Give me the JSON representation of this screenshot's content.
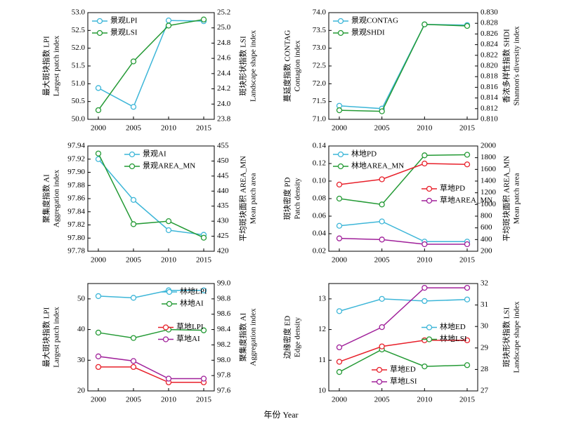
{
  "chart_data": [
    {
      "type": "line",
      "categories": [
        "2000",
        "2005",
        "2010",
        "2015"
      ],
      "ylabel": [
        "最大斑块指数  LPI",
        "Largest patch index"
      ],
      "y2label": [
        "斑块形状指数  LSI",
        "Landscape shape index"
      ],
      "ylim": [
        50.0,
        53.0
      ],
      "yticks": [
        {
          "value": 50,
          "label": "50.0"
        },
        50.5,
        {
          "value": 51,
          "label": "51.0"
        },
        51.5,
        {
          "value": 52,
          "label": "52.0"
        },
        52.5,
        {
          "value": 53,
          "label": "53.0"
        }
      ],
      "y2lim": [
        23.8,
        25.2
      ],
      "y2ticks": [
        23.8,
        {
          "value": 24,
          "label": "24.0"
        },
        24.2,
        24.4,
        24.6,
        24.8,
        {
          "value": 25,
          "label": "25.0"
        },
        25.2
      ],
      "legend": [
        "upper left"
      ],
      "series": [
        {
          "name": "景观LPI",
          "color": "#3db6d8",
          "values": [
            50.88,
            50.35,
            52.78,
            52.76
          ]
        },
        {
          "name": "景观LSI",
          "color": "#249a35",
          "axis": "y2",
          "values": [
            23.92,
            24.56,
            25.03,
            25.11
          ]
        }
      ]
    },
    {
      "type": "line",
      "categories": [
        "2000",
        "2005",
        "2010",
        "2015"
      ],
      "ylabel": [
        "蔓延度指数 CONTAG",
        "Contagion index"
      ],
      "y2label": [
        "香浓多样性指数 SHDI",
        "Shannon's diversity index"
      ],
      "ylim": [
        71.0,
        74.0
      ],
      "yticks": [
        {
          "value": 71,
          "label": "71.0"
        },
        71.5,
        {
          "value": 72,
          "label": "72.0"
        },
        72.5,
        {
          "value": 73,
          "label": "73.0"
        },
        73.5,
        {
          "value": 74,
          "label": "74.0"
        }
      ],
      "y2lim": [
        0.81,
        0.83
      ],
      "y2ticks": [
        {
          "value": 0.81,
          "label": "0.810"
        },
        0.812,
        0.814,
        0.816,
        0.818,
        {
          "value": 0.82,
          "label": "0.820"
        },
        0.822,
        0.824,
        0.826,
        0.828,
        {
          "value": 0.83,
          "label": "0.830"
        }
      ],
      "legend": [
        "upper left"
      ],
      "series": [
        {
          "name": "景观CONTAG",
          "color": "#3db6d8",
          "values": [
            71.38,
            71.3,
            73.67,
            73.65
          ]
        },
        {
          "name": "景观SHDI",
          "color": "#249a35",
          "axis": "y2",
          "values": [
            0.8117,
            0.8115,
            0.8278,
            0.8275
          ]
        }
      ]
    },
    {
      "type": "line",
      "categories": [
        "2000",
        "2005",
        "2010",
        "2015"
      ],
      "ylabel": [
        "聚集度指数  AI",
        "Aggregation index"
      ],
      "y2label": [
        "平均斑块面积 AREA_MN",
        "Mean patch area"
      ],
      "ylim": [
        97.78,
        97.94
      ],
      "yticks": [
        97.78,
        {
          "value": 97.8,
          "label": "97.80"
        },
        97.82,
        97.84,
        97.86,
        97.88,
        {
          "value": 97.9,
          "label": "97.90"
        },
        97.92,
        97.94
      ],
      "y2lim": [
        420,
        455
      ],
      "y2ticks": [
        420,
        425,
        430,
        435,
        440,
        445,
        450,
        455
      ],
      "legend": [
        "upper center"
      ],
      "series": [
        {
          "name": "景观AI",
          "color": "#3db6d8",
          "values": [
            97.92,
            97.858,
            97.812,
            97.805
          ]
        },
        {
          "name": "景观AREA_MN",
          "color": "#249a35",
          "axis": "y2",
          "values": [
            452.5,
            429,
            430,
            424.5
          ]
        }
      ]
    },
    {
      "type": "line",
      "categories": [
        "2000",
        "2005",
        "2010",
        "2015"
      ],
      "ylabel": [
        "斑块密度  PD",
        "Patch density"
      ],
      "y2label": [
        "平均斑块面积 AREA_MN",
        "Mean patch area"
      ],
      "ylim": [
        0.02,
        0.14
      ],
      "yticks": [
        0.02,
        0.04,
        0.06,
        0.08,
        {
          "value": 0.1,
          "label": "0.10"
        },
        0.12,
        0.14
      ],
      "y2lim": [
        200,
        2000
      ],
      "y2ticks": [
        200,
        400,
        600,
        800,
        1000,
        1200,
        1400,
        1600,
        1800,
        2000
      ],
      "legend": [
        "upper left",
        "center right"
      ],
      "series": [
        {
          "name": "林地PD",
          "color": "#3db6d8",
          "values": [
            0.049,
            0.054,
            0.031,
            0.031
          ]
        },
        {
          "name": "林地AREA_MN",
          "color": "#249a35",
          "axis": "y2",
          "values": [
            1100,
            1000,
            1840,
            1850
          ]
        },
        {
          "name": "草地PD",
          "color": "#e8202a",
          "values": [
            0.096,
            0.102,
            0.12,
            0.119
          ]
        },
        {
          "name": "草地AREA_MN",
          "color": "#a0209a",
          "axis": "y2",
          "values": [
            420,
            400,
            320,
            320
          ]
        }
      ]
    },
    {
      "type": "line",
      "categories": [
        "2000",
        "2005",
        "2010",
        "2015"
      ],
      "ylabel": [
        "最大斑块指数  LPI",
        "Largest patch index"
      ],
      "y2label": [
        "聚集度指数  AI",
        "Aggregation index"
      ],
      "ylim": [
        20,
        55
      ],
      "yticks": [
        20,
        30,
        40,
        50
      ],
      "y2lim": [
        97.6,
        99.0
      ],
      "y2ticks": [
        97.6,
        97.8,
        {
          "value": 98,
          "label": "98.0"
        },
        98.2,
        98.4,
        98.6,
        98.8,
        {
          "value": 99,
          "label": "99.0"
        }
      ],
      "legend": [
        "upper right",
        "center right"
      ],
      "series": [
        {
          "name": "林地LPI",
          "color": "#3db6d8",
          "values": [
            50.9,
            50.35,
            52.78,
            52.76
          ]
        },
        {
          "name": "林地AI",
          "color": "#249a35",
          "axis": "y2",
          "values": [
            98.36,
            98.29,
            98.4,
            98.39
          ]
        },
        {
          "name": "草地LPI",
          "color": "#e8202a",
          "values": [
            27.8,
            27.8,
            22.8,
            22.8
          ]
        },
        {
          "name": "草地AI",
          "color": "#a0209a",
          "axis": "y2",
          "values": [
            98.05,
            97.99,
            97.76,
            97.76
          ]
        }
      ]
    },
    {
      "type": "line",
      "categories": [
        "2000",
        "2005",
        "2010",
        "2015"
      ],
      "ylabel": [
        "边缘密度  ED",
        "Edge density"
      ],
      "y2label": [
        "斑块形状指数  LSI",
        "Landscape shape index"
      ],
      "ylim": [
        10,
        13.5
      ],
      "yticks": [
        10,
        11,
        12,
        13
      ],
      "y2lim": [
        27,
        32
      ],
      "y2ticks": [
        27,
        28,
        29,
        30,
        31,
        32
      ],
      "legend": [
        "center right",
        "lower center"
      ],
      "series": [
        {
          "name": "林地ED",
          "color": "#3db6d8",
          "values": [
            12.6,
            13.0,
            12.93,
            12.98
          ]
        },
        {
          "name": "林地LSI",
          "color": "#249a35",
          "axis": "y2",
          "values": [
            27.88,
            28.93,
            28.14,
            28.2
          ]
        },
        {
          "name": "草地ED",
          "color": "#e8202a",
          "values": [
            10.95,
            11.45,
            11.65,
            11.65
          ]
        },
        {
          "name": "草地LSI",
          "color": "#a0209a",
          "axis": "y2",
          "values": [
            29.03,
            29.97,
            31.8,
            31.8
          ]
        }
      ]
    }
  ],
  "xlabel": "年份 Year"
}
